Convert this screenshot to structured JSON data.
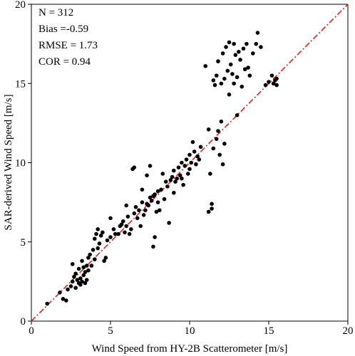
{
  "chart_data": {
    "type": "scatter",
    "xlabel": "Wind Speed from HY-2B Scatterometer [m/s]",
    "ylabel": "SAR-derived Wind Speed [m/s]",
    "annotations": [
      "N = 312",
      "Bias =-0.59",
      "RMSE = 1.73",
      "COR = 0.94"
    ],
    "xlim": [
      0,
      20
    ],
    "ylim": [
      0,
      20
    ],
    "xticks": [
      0,
      5,
      10,
      15,
      20
    ],
    "yticks": [
      0,
      5,
      10,
      15,
      20
    ],
    "grid": false,
    "color": "#000000",
    "identity_line_color": "#e02020",
    "x": [
      1,
      1.8,
      2,
      2.2,
      2.3,
      2.5,
      2.6,
      2.6,
      2.7,
      2.8,
      2.8,
      2.9,
      3.0,
      3.0,
      3.1,
      3.1,
      3.2,
      3.2,
      3.3,
      3.3,
      3.4,
      3.4,
      3.5,
      3.5,
      3.6,
      3.6,
      3.7,
      3.8,
      3.9,
      4.0,
      4.0,
      4.1,
      4.2,
      4.2,
      4.3,
      4.4,
      4.5,
      4.6,
      4.7,
      4.8,
      5.0,
      5.0,
      5.2,
      5.3,
      5.5,
      5.6,
      5.7,
      5.8,
      5.9,
      6.0,
      6.0,
      6.1,
      6.2,
      6.3,
      6.4,
      6.5,
      6.5,
      6.6,
      6.7,
      6.8,
      6.9,
      7.0,
      7.0,
      7.1,
      7.2,
      7.3,
      7.3,
      7.4,
      7.5,
      7.5,
      7.6,
      7.7,
      7.7,
      7.8,
      7.8,
      7.9,
      8.0,
      8.0,
      8.1,
      8.2,
      8.3,
      8.4,
      8.5,
      8.6,
      8.7,
      8.8,
      8.9,
      9.0,
      9.0,
      9.1,
      9.2,
      9.3,
      9.4,
      9.5,
      9.5,
      9.6,
      9.7,
      9.8,
      9.9,
      10.0,
      10.0,
      10.1,
      10.2,
      10.3,
      10.4,
      10.5,
      10.6,
      10.7,
      11.0,
      11.2,
      11.2,
      11.3,
      11.4,
      11.4,
      11.5,
      11.5,
      11.6,
      11.7,
      11.7,
      11.8,
      11.8,
      11.9,
      12.0,
      12.0,
      12.1,
      12.1,
      12.2,
      12.2,
      12.3,
      12.4,
      12.5,
      12.5,
      12.6,
      12.7,
      12.8,
      12.8,
      12.9,
      13.0,
      13.0,
      13.1,
      13.2,
      13.3,
      13.4,
      13.5,
      13.6,
      13.7,
      13.8,
      14.0,
      14.2,
      14.3,
      14.5,
      14.8,
      15.0,
      15.2,
      15.3,
      15.4,
      15.5,
      15.5
    ],
    "values": [
      1.1,
      1.8,
      1.4,
      1.3,
      2.0,
      2.2,
      2.5,
      3.6,
      2.8,
      2.1,
      3.0,
      2.6,
      2.4,
      3.3,
      2.7,
      2.3,
      3.8,
      2.5,
      3.4,
      2.9,
      3.1,
      2.4,
      3.5,
      2.6,
      4.0,
      3.2,
      4.2,
      3.5,
      4.5,
      3.9,
      5.2,
      5.5,
      4.6,
      5.8,
      4.9,
      5.4,
      5.6,
      3.8,
      4.0,
      5.1,
      6.5,
      5.3,
      5.8,
      5.5,
      5.5,
      6.0,
      6.1,
      6.3,
      5.6,
      6.0,
      7.3,
      6.6,
      5.5,
      5.8,
      9.6,
      9.7,
      6.8,
      7.2,
      6.5,
      7.0,
      6.0,
      7.5,
      8.3,
      6.7,
      7.0,
      9.2,
      7.4,
      7.3,
      7.8,
      9.8,
      7.6,
      7.9,
      4.7,
      5.3,
      8.0,
      6.9,
      8.2,
      7.5,
      7.0,
      8.3,
      9.3,
      7.7,
      8.8,
      8.5,
      6.2,
      8.9,
      9.1,
      9.5,
      8.1,
      8.8,
      9.0,
      9.7,
      9.2,
      9.0,
      10.0,
      8.6,
      9.8,
      10.2,
      9.3,
      9.6,
      10.5,
      10.0,
      11.3,
      10.7,
      9.9,
      10.4,
      10.2,
      11.0,
      16.1,
      12.1,
      6.9,
      9.3,
      7.1,
      7.4,
      10.9,
      15.2,
      14.9,
      15.5,
      11.5,
      12.0,
      16.4,
      10.5,
      15.0,
      12.6,
      9.9,
      16.9,
      15.3,
      11.2,
      17.3,
      15.8,
      17.6,
      14.3,
      16.2,
      15.6,
      17.5,
      15.0,
      16.8,
      15.4,
      13.0,
      17.0,
      16.5,
      14.8,
      17.2,
      15.9,
      17.5,
      16.0,
      15.5,
      16.9,
      17.5,
      18.2,
      17.3,
      14.9,
      15.1,
      15.5,
      15.0,
      15.2,
      15.3,
      14.9
    ]
  }
}
